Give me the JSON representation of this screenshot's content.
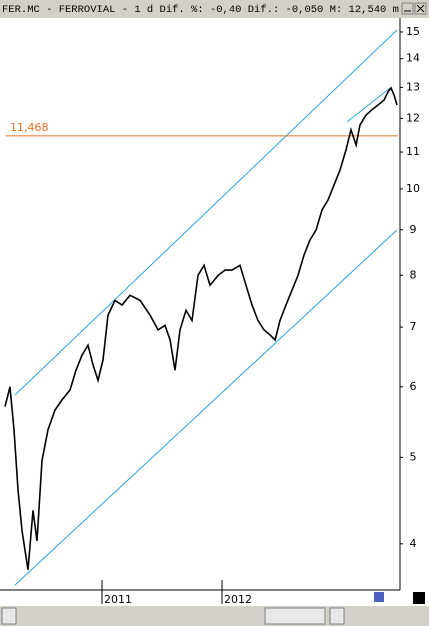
{
  "header": "FER.MC - FERROVIAL -  1 d Dif. %: -0,40 Dif.: -0,050 M: 12,540 m",
  "chart_data": {
    "type": "line",
    "log_scale": true,
    "x": [
      2010.192,
      2010.233,
      2010.267,
      2010.3,
      2010.333,
      2010.383,
      2010.425,
      2010.458,
      2010.5,
      2010.55,
      2010.608,
      2010.667,
      2010.733,
      2010.783,
      2010.833,
      2010.883,
      2010.925,
      2010.967,
      2011.008,
      2011.05,
      2011.108,
      2011.167,
      2011.233,
      2011.317,
      2011.4,
      2011.467,
      2011.525,
      2011.567,
      2011.608,
      2011.65,
      2011.7,
      2011.75,
      2011.8,
      2011.85,
      2011.9,
      2011.967,
      2012.025,
      2012.083,
      2012.15,
      2012.2,
      2012.25,
      2012.3,
      2012.35,
      2012.4,
      2012.442,
      2012.483,
      2012.533,
      2012.583,
      2012.633,
      2012.683,
      2012.733,
      2012.783,
      2012.833,
      2012.883,
      2012.933,
      2012.983,
      2013.033,
      2013.075,
      2013.117,
      2013.15,
      2013.2,
      2013.25,
      2013.3,
      2013.35,
      2013.383,
      2013.408,
      2013.433,
      2013.458
    ],
    "series": [
      {
        "name": "FER.MC",
        "color": "#000000",
        "values": [
          5.7,
          6.0,
          5.37,
          4.6,
          4.14,
          3.74,
          4.36,
          4.03,
          4.96,
          5.37,
          5.65,
          5.8,
          5.95,
          6.26,
          6.51,
          6.68,
          6.35,
          6.1,
          6.43,
          7.22,
          7.5,
          7.41,
          7.6,
          7.5,
          7.22,
          6.95,
          7.03,
          6.77,
          6.26,
          6.95,
          7.31,
          7.12,
          8.0,
          8.21,
          7.8,
          8.0,
          8.11,
          8.11,
          8.21,
          7.8,
          7.41,
          7.12,
          6.95,
          6.86,
          6.77,
          7.12,
          7.41,
          7.7,
          8.0,
          8.43,
          8.77,
          8.99,
          9.47,
          9.72,
          10.1,
          10.5,
          11.06,
          11.65,
          11.2,
          11.8,
          12.1,
          12.27,
          12.42,
          12.58,
          12.85,
          12.98,
          12.75,
          12.42
        ]
      }
    ],
    "xlim": [
      2010.15,
      2013.483
    ],
    "xticks": [
      2011,
      2012
    ],
    "ylim": [
      3.55,
      15.55
    ],
    "yticks": [
      4,
      5,
      6,
      7,
      8,
      9,
      10,
      11,
      12,
      13,
      14,
      15
    ],
    "hline": {
      "value": 11.468,
      "label": "11,468",
      "color": "#e07020"
    },
    "channel_color": "#29a3e0"
  }
}
